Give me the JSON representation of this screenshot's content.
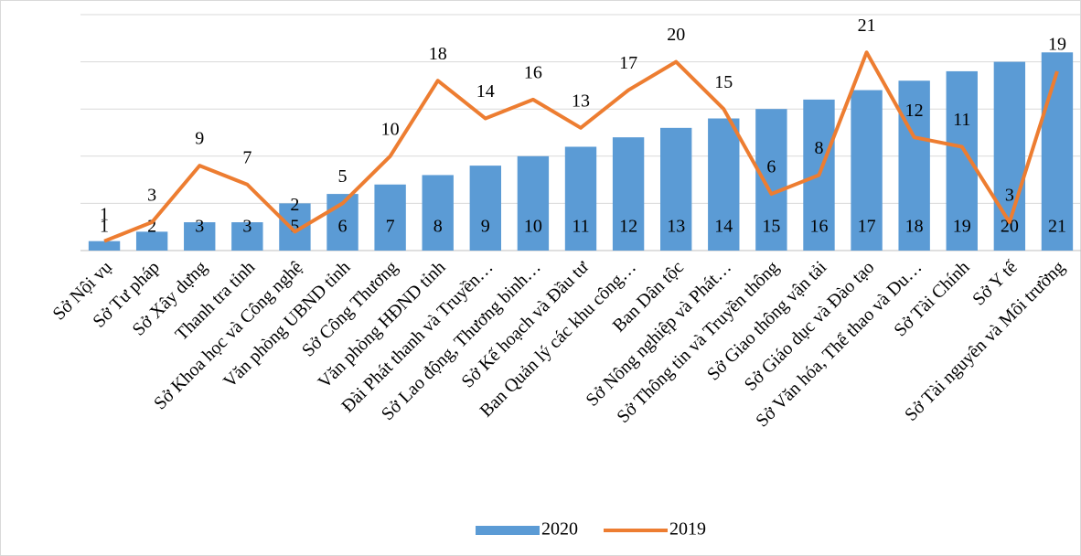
{
  "chart_data": {
    "type": "bar_line",
    "categories": [
      "Sở Nội vụ",
      "Sở Tư pháp",
      "Sở Xây dựng",
      "Thanh tra tỉnh",
      "Sở Khoa học và Công nghệ",
      "Văn phòng UBND tỉnh",
      "Sở Công Thương",
      "Văn phòng HĐND tỉnh",
      "Đài Phát thanh và Truyền…",
      "Sở Lao động, Thương binh…",
      "Sở Kế hoạch và Đầu tư",
      "Ban Quản lý các khu công…",
      "Ban Dân tộc",
      "Sở Nông nghiệp và Phát…",
      "Sở Thông tin và Truyền thông",
      "Sở Giao thông vận tải",
      "Sở Giáo dục và Đào tạo",
      "Sở Văn hóa, Thể thao và Du…",
      "Sở Tài Chính",
      "Sở Y tế",
      "Sở Tài nguyên và Môi trường"
    ],
    "series": [
      {
        "name": "2020",
        "type": "bar",
        "color": "#5b9bd5",
        "values": [
          1,
          2,
          3,
          3,
          5,
          6,
          7,
          8,
          9,
          10,
          11,
          12,
          13,
          14,
          15,
          16,
          17,
          18,
          19,
          20,
          21
        ]
      },
      {
        "name": "2019",
        "type": "line",
        "color": "#ed7d31",
        "values": [
          1,
          3,
          9,
          7,
          2,
          5,
          10,
          18,
          14,
          16,
          13,
          17,
          20,
          15,
          6,
          8,
          21,
          12,
          11,
          3,
          19
        ]
      }
    ],
    "ylim": [
      0,
      25
    ],
    "yticks": [
      0,
      5,
      10,
      15,
      20,
      25
    ],
    "grid": true,
    "ytick_labels": false,
    "legend": "bottom"
  }
}
